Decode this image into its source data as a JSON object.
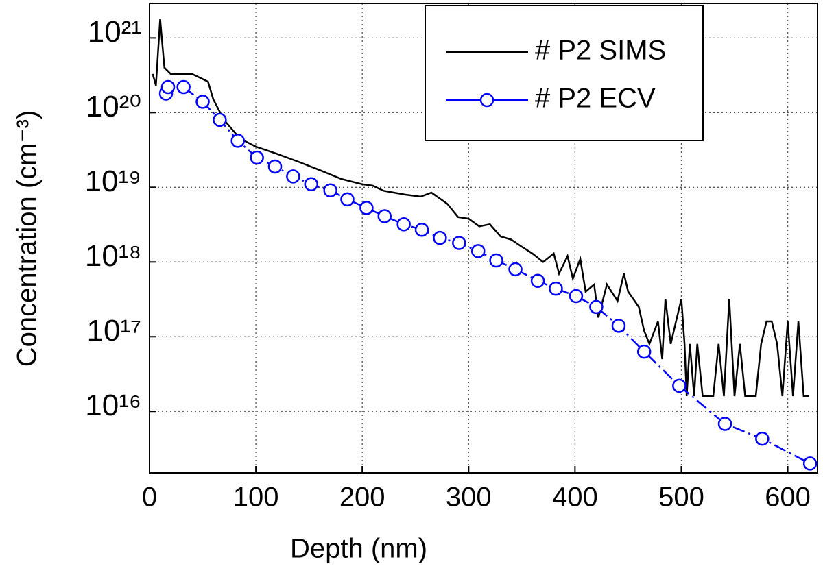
{
  "chart_data": {
    "type": "line",
    "xlabel": "Depth (nm)",
    "ylabel": "Concentration (cm⁻³)",
    "xlim": [
      0,
      628
    ],
    "xticks": [
      0,
      100,
      200,
      300,
      400,
      500,
      600
    ],
    "ylim": [
      1500000000000000.0,
      2.9e+21
    ],
    "log_y": true,
    "grid": true,
    "legend": "upper right",
    "yticks": [
      {
        "value": 1e+16,
        "label": "10¹⁶"
      },
      {
        "value": 1e+17,
        "label": "10¹⁷"
      },
      {
        "value": 1e+18,
        "label": "10¹⁸"
      },
      {
        "value": 1e+19,
        "label": "10¹⁹"
      },
      {
        "value": 1e+20,
        "label": "10²⁰"
      },
      {
        "value": 1e+21,
        "label": "10²¹"
      }
    ],
    "series": [
      {
        "name": "# P2 SIMS",
        "color": "#000000",
        "marker": "none",
        "x": [
          3,
          6,
          10,
          14,
          20,
          40,
          55,
          60,
          70,
          85,
          100,
          120,
          140,
          160,
          180,
          200,
          210,
          220,
          240,
          255,
          265,
          280,
          290,
          300,
          310,
          320,
          330,
          340,
          350,
          360,
          370,
          380,
          385,
          393,
          398,
          405,
          410,
          418,
          422,
          430,
          440,
          446,
          450,
          460,
          465,
          470,
          478,
          482,
          485,
          490,
          495,
          500,
          503,
          505,
          508,
          512,
          515,
          520,
          530,
          535,
          540,
          545,
          550,
          555,
          560,
          570,
          575,
          580,
          585,
          590,
          595,
          600,
          605,
          610,
          615,
          620
        ],
        "values": [
          3.3e+20,
          2.3e+20,
          1.8e+21,
          4e+20,
          3.3e+20,
          3.3e+20,
          2.6e+20,
          1.5e+20,
          8e+19,
          4.5e+19,
          3.5e+19,
          2.8e+19,
          2.2e+19,
          1.7e+19,
          1.3e+19,
          1.1e+19,
          1.05e+19,
          9e+18,
          8e+18,
          7.5e+18,
          8.5e+18,
          6e+18,
          4e+18,
          3.8e+18,
          3e+18,
          3.2e+18,
          2.2e+18,
          2e+18,
          1.6e+18,
          1.3e+18,
          1e+18,
          1.3e+18,
          7e+17,
          1.2e+18,
          6e+17,
          1.1e+18,
          4e+17,
          5e+17,
          1.8e+17,
          5e+17,
          3e+17,
          7e+17,
          4e+17,
          2.5e+17,
          1.2e+17,
          8e+16,
          1.6e+17,
          5e+16,
          3.2e+17,
          8e+16,
          1.6e+17,
          3.2e+17,
          8e+16,
          1.6e+16,
          8e+16,
          1.6e+16,
          8e+16,
          1.6e+16,
          1.6e+16,
          8e+16,
          1.6e+16,
          3.2e+17,
          1.6e+16,
          8e+16,
          1.6e+16,
          1.6e+16,
          8e+16,
          1.6e+17,
          1.6e+17,
          8e+16,
          1.6e+16,
          1.6e+17,
          1.6e+16,
          1.6e+17,
          1.6e+16,
          1.6e+16
        ]
      },
      {
        "name": "# P2 ECV",
        "color": "#0000ff",
        "marker": "circle",
        "x": [
          15.5,
          17.4,
          32,
          50,
          66,
          83,
          101,
          118,
          135,
          152,
          170,
          186,
          204,
          221,
          239,
          256,
          273,
          291,
          309,
          326,
          344,
          365,
          382,
          401,
          420,
          441,
          465,
          498,
          541,
          576,
          621
        ],
        "values": [
          1.8e+20,
          2.2e+20,
          2.2e+20,
          1.4e+20,
          8e+19,
          4.2e+19,
          2.5e+19,
          1.9e+19,
          1.4e+19,
          1.1e+19,
          9.1e+18,
          6.9e+18,
          5.3e+18,
          4.1e+18,
          3.2e+18,
          2.7e+18,
          2.1e+18,
          1.8e+18,
          1.4e+18,
          1.05e+18,
          8e+17,
          5.6e+17,
          4.4e+17,
          3.5e+17,
          2.5e+17,
          1.4e+17,
          6.3e+16,
          2.2e+16,
          6800000000000000.0,
          4300000000000000.0,
          2000000000000000.0
        ]
      }
    ]
  }
}
